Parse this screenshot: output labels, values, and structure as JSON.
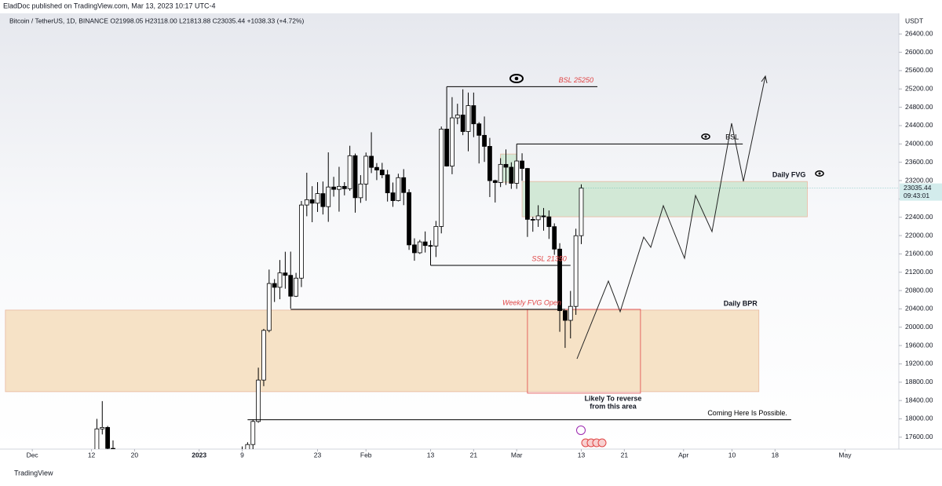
{
  "header": {
    "publisher": "EladDoc published on TradingView.com, Mar 13, 2023 10:17 UTC-4",
    "footer": "TradingView"
  },
  "chart_data": {
    "type": "candlestick",
    "title": "Bitcoin / TetherUS, 1D, BINANCE  O21998.05  H23118.00  L21813.88  C23035.44  +1038.33 (+4.72%)",
    "unit": "USDT",
    "countdown": "09:43:01",
    "up_color": "#ffffff",
    "down_color": "#000000",
    "price_tag_color": "#d3ecec",
    "xlim": [
      "2022-11-25",
      "2023-05-11"
    ],
    "ylim": [
      17340,
      26850
    ],
    "xticks": [
      {
        "value": "2022-12-01",
        "label": "Dec"
      },
      {
        "value": "2022-12-12",
        "label": "12"
      },
      {
        "value": "2022-12-20",
        "label": "20"
      },
      {
        "value": "2023-01-01",
        "label": "2023"
      },
      {
        "value": "2023-01-09",
        "label": "9"
      },
      {
        "value": "2023-01-23",
        "label": "23"
      },
      {
        "value": "2023-02-01",
        "label": "Feb"
      },
      {
        "value": "2023-02-13",
        "label": "13"
      },
      {
        "value": "2023-02-21",
        "label": "21"
      },
      {
        "value": "2023-03-01",
        "label": "Mar"
      },
      {
        "value": "2023-03-13",
        "label": "13"
      },
      {
        "value": "2023-03-21",
        "label": "21"
      },
      {
        "value": "2023-04-01",
        "label": "Apr"
      },
      {
        "value": "2023-04-10",
        "label": "10"
      },
      {
        "value": "2023-04-18",
        "label": "18"
      },
      {
        "value": "2023-05-01",
        "label": "May"
      }
    ],
    "yticks": [
      {
        "value": 17600,
        "label": "17600.00"
      },
      {
        "value": 18000,
        "label": "18000.00"
      },
      {
        "value": 18400,
        "label": "18400.00"
      },
      {
        "value": 18800,
        "label": "18800.00"
      },
      {
        "value": 19200,
        "label": "19200.00"
      },
      {
        "value": 19600,
        "label": "19600.00"
      },
      {
        "value": 20000,
        "label": "20000.00"
      },
      {
        "value": 20400,
        "label": "20400.00"
      },
      {
        "value": 20800,
        "label": "20800.00"
      },
      {
        "value": 21200,
        "label": "21200.00"
      },
      {
        "value": 21600,
        "label": "21600.00"
      },
      {
        "value": 22000,
        "label": "22000.00"
      },
      {
        "value": 22400,
        "label": "22400.00"
      },
      {
        "value": 22800,
        "label": "22800.00"
      },
      {
        "value": 23200,
        "label": "23200.00"
      },
      {
        "value": 23600,
        "label": "23600.00"
      },
      {
        "value": 24000,
        "label": "24000.00"
      },
      {
        "value": 24400,
        "label": "24400.00"
      },
      {
        "value": 24800,
        "label": "24800.00"
      },
      {
        "value": 25200,
        "label": "25200.00"
      },
      {
        "value": 25600,
        "label": "25600.00"
      },
      {
        "value": 26000,
        "label": "26000.00"
      },
      {
        "value": 26400,
        "label": "26400.00"
      }
    ],
    "x": [
      "2022-12-13",
      "2022-12-14",
      "2022-12-15",
      "2022-12-16",
      "2023-01-08",
      "2023-01-09",
      "2023-01-10",
      "2023-01-11",
      "2023-01-12",
      "2023-01-13",
      "2023-01-14",
      "2023-01-15",
      "2023-01-16",
      "2023-01-17",
      "2023-01-18",
      "2023-01-19",
      "2023-01-20",
      "2023-01-21",
      "2023-01-22",
      "2023-01-23",
      "2023-01-24",
      "2023-01-25",
      "2023-01-26",
      "2023-01-27",
      "2023-01-28",
      "2023-01-29",
      "2023-01-30",
      "2023-01-31",
      "2023-02-01",
      "2023-02-02",
      "2023-02-03",
      "2023-02-04",
      "2023-02-05",
      "2023-02-06",
      "2023-02-07",
      "2023-02-08",
      "2023-02-09",
      "2023-02-10",
      "2023-02-11",
      "2023-02-12",
      "2023-02-13",
      "2023-02-14",
      "2023-02-15",
      "2023-02-16",
      "2023-02-17",
      "2023-02-18",
      "2023-02-19",
      "2023-02-20",
      "2023-02-21",
      "2023-02-22",
      "2023-02-23",
      "2023-02-24",
      "2023-02-25",
      "2023-02-26",
      "2023-02-27",
      "2023-02-28",
      "2023-03-01",
      "2023-03-02",
      "2023-03-03",
      "2023-03-04",
      "2023-03-05",
      "2023-03-06",
      "2023-03-07",
      "2023-03-08",
      "2023-03-09",
      "2023-03-10",
      "2023-03-11",
      "2023-03-12",
      "2023-03-13"
    ],
    "open": [
      17206,
      17781,
      17813,
      17356,
      16943,
      17127,
      17178,
      17440,
      17943,
      18846,
      19930,
      20954,
      20871,
      21185,
      21132,
      20677,
      21071,
      22667,
      22783,
      22707,
      22916,
      22632,
      23060,
      23009,
      23074,
      23023,
      23743,
      22826,
      23125,
      23732,
      23488,
      23431,
      23326,
      22933,
      22763,
      23264,
      22939,
      21797,
      21625,
      21862,
      21783,
      21773,
      22199,
      24324,
      23517,
      24569,
      24631,
      24271,
      24836,
      24439,
      24188,
      23947,
      23199,
      23157,
      23554,
      23492,
      23141,
      23628,
      23465,
      22354,
      22346,
      22430,
      22409,
      22195,
      21705,
      20362,
      20150,
      20455,
      21998.05
    ],
    "high": [
      18000,
      18387,
      17846,
      17530,
      17176,
      17398,
      17490,
      17990,
      19117,
      19964,
      21258,
      21050,
      21467,
      21647,
      21650,
      21186,
      22755,
      23371,
      23078,
      23166,
      23180,
      23816,
      23282,
      23500,
      23166,
      23960,
      23790,
      23319,
      23812,
      24255,
      23582,
      23587,
      23433,
      23158,
      23350,
      23450,
      23011,
      21940,
      21906,
      22090,
      21894,
      22320,
      24380,
      25250,
      25021,
      24877,
      25192,
      25121,
      25121,
      24476,
      24599,
      24132,
      23220,
      23689,
      23880,
      23600,
      24000,
      23796,
      23476,
      22410,
      22662,
      22602,
      22549,
      22267,
      21834,
      20367,
      20792,
      22150,
      23118.0
    ],
    "low": [
      17090,
      17660,
      17275,
      16585,
      16908,
      17100,
      17145,
      17315,
      17915,
      18714,
      19889,
      20551,
      20611,
      20841,
      20407,
      20660,
      20876,
      22422,
      22292,
      22516,
      22460,
      22300,
      22850,
      22522,
      22878,
      22977,
      22500,
      22714,
      22760,
      23364,
      23211,
      23253,
      22743,
      22628,
      22745,
      22664,
      21688,
      21451,
      21599,
      21630,
      21351,
      21532,
      22047,
      23505,
      23339,
      24430,
      24192,
      23840,
      24148,
      23574,
      23608,
      22841,
      22722,
      23059,
      23106,
      23020,
      23020,
      23195,
      21971,
      22084,
      22189,
      22107,
      21927,
      21580,
      19900,
      19549,
      19756,
      20270,
      21813.88
    ],
    "close": [
      17781,
      17813,
      17356,
      16632,
      17127,
      17178,
      17440,
      17943,
      18846,
      19930,
      20954,
      20871,
      21185,
      21132,
      20677,
      21071,
      22667,
      22783,
      22707,
      22916,
      22632,
      23060,
      23009,
      23074,
      23023,
      23743,
      22826,
      23125,
      23732,
      23488,
      23431,
      23326,
      22933,
      22763,
      23264,
      22939,
      21797,
      21625,
      21862,
      21783,
      21773,
      22199,
      24324,
      23517,
      24569,
      24631,
      24271,
      24836,
      24439,
      24188,
      23947,
      23199,
      23157,
      23554,
      23492,
      23141,
      23628,
      23465,
      22354,
      22346,
      22430,
      22409,
      22195,
      21705,
      20362,
      20150,
      20455,
      21997,
      23035.44
    ],
    "zones": [
      {
        "label": "Daily BPR",
        "top": 20374,
        "bottom": 18593,
        "start": "2022-11-26",
        "end": "2023-04-15",
        "color": "#f6e2c6"
      },
      {
        "label": "Daily FVG",
        "top": 23180,
        "bottom": 22410,
        "start": "2023-03-02",
        "end": "2023-04-24",
        "color": "#d2e8d6"
      },
      {
        "top": 23780,
        "bottom": 23165,
        "start": "2023-02-26",
        "end": "2023-03-01",
        "color": "#d2e8d6"
      },
      {
        "top": 20390,
        "bottom": 18560,
        "start": "2023-03-03",
        "end": "2023-03-24",
        "border": "#e04545"
      }
    ],
    "levels": [
      {
        "label": "BSL 25250",
        "price": 25250,
        "start": "2023-02-16",
        "end": "2023-03-16",
        "color": "#e04545"
      },
      {
        "label": "BSL",
        "price": 24000,
        "start": "2023-03-01",
        "end": "2023-04-12",
        "color": "#000000"
      },
      {
        "label": "SSL 21350",
        "price": 21350,
        "start": "2023-02-13",
        "end": "2023-03-11",
        "color": "#e04545"
      },
      {
        "label": "Weekly FVG Open",
        "price": 20390,
        "start": "2023-01-18",
        "end": "2023-03-10",
        "color": "#e04545"
      },
      {
        "label": "Coming Here Is Possible.",
        "price": 17980,
        "start": "2023-01-10",
        "end": "2023-04-21",
        "color": "#000000"
      }
    ],
    "notes": [
      "Likely To reverse",
      "from this area"
    ]
  }
}
